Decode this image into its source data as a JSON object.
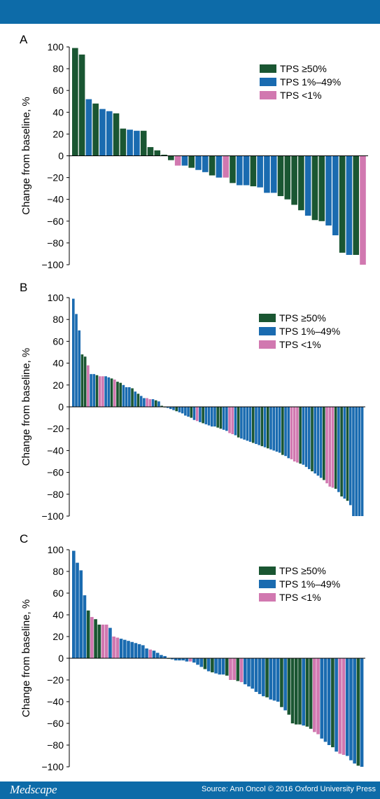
{
  "colors": {
    "brand_bar": "#0d6ba8",
    "tps_high": "#1a5632",
    "tps_mid": "#1a6bb0",
    "tps_low": "#d178b0"
  },
  "footer": {
    "brand": "Medscape",
    "source": "Source: Ann Oncol © 2016 Oxford University Press"
  },
  "chart_data": [
    {
      "type": "bar",
      "panel_label": "A",
      "ylabel": "Change from baseline, %",
      "ylim": [
        -100,
        100
      ],
      "yticks": [
        "100",
        "80",
        "60",
        "40",
        "20",
        "0",
        "−20",
        "−40",
        "−60",
        "−80",
        "−100"
      ],
      "legend": {
        "placement": "top-right",
        "entries": [
          "TPS ≥50%",
          "TPS 1%–49%",
          "TPS <1%"
        ]
      },
      "series_key": [
        "high",
        "mid",
        "low"
      ],
      "values": [
        99,
        93,
        52,
        48,
        43,
        41,
        39,
        25,
        24,
        23,
        23,
        8,
        5,
        1,
        -4,
        -9,
        -9,
        -11,
        -13,
        -15,
        -18,
        -20,
        -20,
        -25,
        -27,
        -27,
        -28,
        -29,
        -34,
        -34,
        -37,
        -40,
        -45,
        -50,
        -55,
        -59,
        -60,
        -64,
        -73,
        -89,
        -91,
        -91,
        -100
      ],
      "groups": [
        "high",
        "high",
        "mid",
        "high",
        "mid",
        "mid",
        "high",
        "high",
        "mid",
        "mid",
        "high",
        "high",
        "high",
        "high",
        "high",
        "low",
        "mid",
        "high",
        "mid",
        "mid",
        "high",
        "mid",
        "low",
        "high",
        "mid",
        "mid",
        "high",
        "mid",
        "mid",
        "mid",
        "high",
        "high",
        "high",
        "high",
        "mid",
        "high",
        "high",
        "mid",
        "mid",
        "high",
        "mid",
        "high",
        "low"
      ]
    },
    {
      "type": "bar",
      "panel_label": "B",
      "ylabel": "Change from baseline, %",
      "ylim": [
        -100,
        100
      ],
      "yticks": [
        "100",
        "80",
        "60",
        "40",
        "20",
        "0",
        "−20",
        "−40",
        "−60",
        "−80",
        "−100"
      ],
      "legend": {
        "placement": "top-right",
        "entries": [
          "TPS ≥50%",
          "TPS 1%–49%",
          "TPS <1%"
        ]
      },
      "series_key": [
        "high",
        "mid",
        "low"
      ],
      "values": [
        99,
        85,
        70,
        48,
        46,
        38,
        30,
        30,
        29,
        28,
        28,
        28,
        27,
        26,
        25,
        23,
        22,
        20,
        18,
        18,
        17,
        14,
        12,
        10,
        8,
        8,
        7,
        7,
        6,
        5,
        1,
        0,
        -1,
        -2,
        -3,
        -4,
        -5,
        -6,
        -8,
        -9,
        -10,
        -12,
        -13,
        -14,
        -15,
        -16,
        -17,
        -18,
        -18,
        -19,
        -20,
        -21,
        -22,
        -24,
        -25,
        -26,
        -28,
        -29,
        -30,
        -31,
        -32,
        -33,
        -34,
        -35,
        -36,
        -37,
        -38,
        -39,
        -40,
        -41,
        -42,
        -44,
        -45,
        -47,
        -48,
        -50,
        -51,
        -52,
        -53,
        -55,
        -57,
        -59,
        -61,
        -63,
        -65,
        -67,
        -70,
        -73,
        -74,
        -75,
        -78,
        -82,
        -84,
        -86,
        -90,
        -100,
        -100,
        -100,
        -100
      ],
      "groups": [
        "mid",
        "mid",
        "mid",
        "high",
        "high",
        "low",
        "mid",
        "mid",
        "high",
        "low",
        "low",
        "mid",
        "mid",
        "high",
        "low",
        "high",
        "high",
        "mid",
        "mid",
        "mid",
        "high",
        "mid",
        "high",
        "mid",
        "mid",
        "low",
        "low",
        "mid",
        "high",
        "mid",
        "high",
        "high",
        "mid",
        "mid",
        "mid",
        "high",
        "mid",
        "mid",
        "mid",
        "mid",
        "high",
        "mid",
        "low",
        "mid",
        "high",
        "mid",
        "mid",
        "mid",
        "mid",
        "high",
        "high",
        "mid",
        "mid",
        "low",
        "low",
        "mid",
        "high",
        "mid",
        "mid",
        "mid",
        "mid",
        "high",
        "mid",
        "mid",
        "high",
        "mid",
        "high",
        "mid",
        "mid",
        "mid",
        "mid",
        "high",
        "mid",
        "mid",
        "low",
        "low",
        "low",
        "high",
        "mid",
        "mid",
        "mid",
        "high",
        "mid",
        "mid",
        "mid",
        "high",
        "low",
        "low",
        "low",
        "high",
        "mid",
        "high",
        "mid",
        "high",
        "mid",
        "mid",
        "mid",
        "mid",
        "mid"
      ]
    },
    {
      "type": "bar",
      "panel_label": "C",
      "ylabel": "Change from baseline, %",
      "ylim": [
        -100,
        100
      ],
      "yticks": [
        "100",
        "80",
        "60",
        "40",
        "20",
        "0",
        "−20",
        "−40",
        "−60",
        "−80",
        "−100"
      ],
      "legend": {
        "placement": "top-right",
        "entries": [
          "TPS ≥50%",
          "TPS 1%–49%",
          "TPS <1%"
        ]
      },
      "series_key": [
        "high",
        "mid",
        "low"
      ],
      "values": [
        99,
        88,
        81,
        58,
        44,
        38,
        36,
        31,
        31,
        31,
        28,
        20,
        19,
        18,
        17,
        16,
        15,
        14,
        13,
        12,
        9,
        8,
        7,
        5,
        3,
        2,
        0,
        -1,
        -2,
        -2,
        -2,
        -3,
        -3,
        -4,
        -6,
        -8,
        -10,
        -12,
        -13,
        -14,
        -15,
        -15,
        -16,
        -20,
        -20,
        -21,
        -22,
        -24,
        -26,
        -28,
        -31,
        -33,
        -35,
        -36,
        -38,
        -39,
        -40,
        -45,
        -48,
        -52,
        -60,
        -61,
        -61,
        -62,
        -63,
        -65,
        -68,
        -70,
        -74,
        -77,
        -80,
        -82,
        -86,
        -88,
        -89,
        -90,
        -94,
        -97,
        -99,
        -100
      ],
      "groups": [
        "mid",
        "mid",
        "mid",
        "mid",
        "high",
        "low",
        "high",
        "high",
        "low",
        "low",
        "mid",
        "low",
        "low",
        "mid",
        "mid",
        "mid",
        "mid",
        "mid",
        "mid",
        "mid",
        "mid",
        "low",
        "mid",
        "mid",
        "mid",
        "mid",
        "high",
        "mid",
        "mid",
        "mid",
        "mid",
        "mid",
        "low",
        "mid",
        "mid",
        "mid",
        "high",
        "mid",
        "high",
        "mid",
        "mid",
        "mid",
        "high",
        "low",
        "low",
        "high",
        "low",
        "mid",
        "mid",
        "mid",
        "mid",
        "mid",
        "mid",
        "high",
        "mid",
        "mid",
        "mid",
        "high",
        "mid",
        "high",
        "high",
        "high",
        "high",
        "mid",
        "high",
        "high",
        "low",
        "low",
        "mid",
        "mid",
        "mid",
        "high",
        "mid",
        "low",
        "low",
        "mid",
        "mid",
        "mid",
        "high",
        "mid"
      ]
    }
  ]
}
